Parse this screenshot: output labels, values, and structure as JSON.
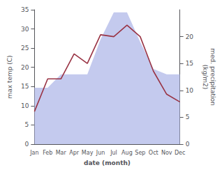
{
  "chart_data": {
    "type": "line",
    "categories": [
      "Jan",
      "Feb",
      "Mar",
      "Apr",
      "May",
      "Jun",
      "Jul",
      "Aug",
      "Sep",
      "Oct",
      "Nov",
      "Dec"
    ],
    "xlabel": "date (month)",
    "ylabel": "max temp (C)",
    "y2label": "med. precipitation\n(kg/m2)",
    "series": [
      {
        "type": "area",
        "axis": "y2",
        "color": "#b0b8e8",
        "values": [
          10.5,
          10.5,
          13.0,
          13.0,
          13.0,
          19.5,
          24.5,
          24.5,
          19.0,
          14.0,
          13.0,
          13.0
        ]
      },
      {
        "type": "line",
        "color": "#993344",
        "values": [
          8.5,
          17.0,
          17.0,
          23.5,
          21.0,
          28.5,
          28.0,
          31.0,
          28.0,
          19.0,
          13.0,
          11.0
        ]
      }
    ],
    "ylim": [
      0,
      35
    ],
    "yticks": [
      0,
      5,
      10,
      15,
      20,
      25,
      30,
      35
    ],
    "y2lim": [
      0,
      25
    ],
    "y2ticks": [
      0,
      5,
      10,
      15,
      20
    ],
    "grid": false
  }
}
